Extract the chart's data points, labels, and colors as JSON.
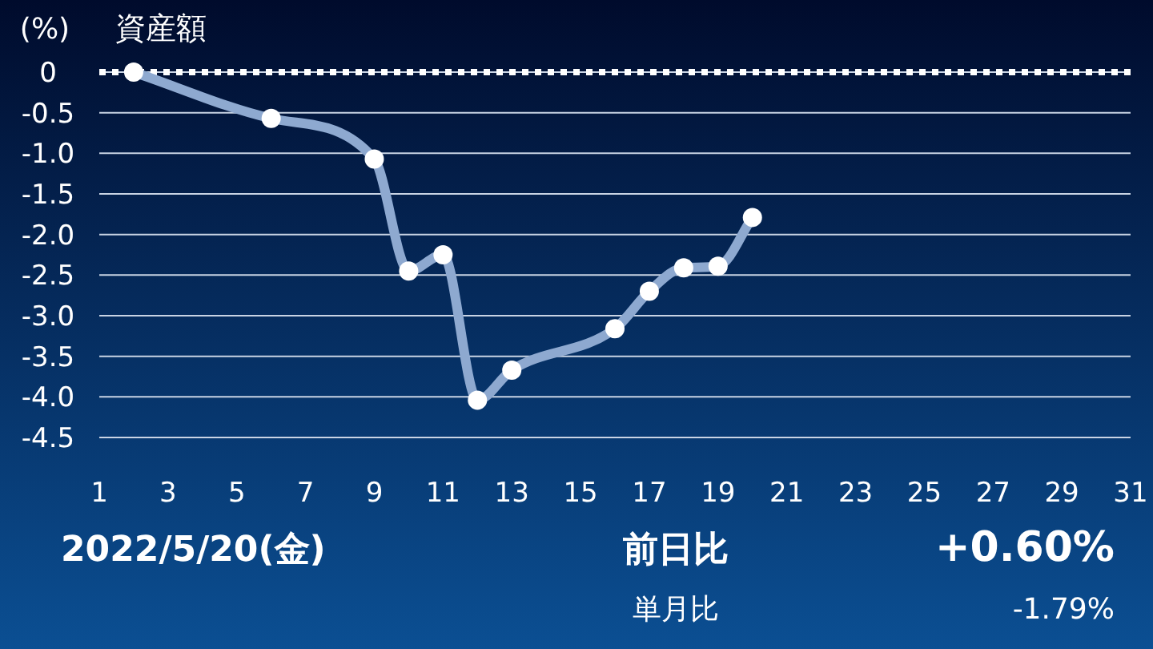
{
  "chart_data": {
    "type": "line",
    "title": "資産額",
    "ylabel": "(%)",
    "x": [
      2,
      6,
      9,
      10,
      11,
      12,
      13,
      16,
      17,
      18,
      19,
      20
    ],
    "series": [
      {
        "color": "#8ea9d0",
        "values": [
          0,
          -0.57,
          -1.07,
          -2.45,
          -2.25,
          -4.04,
          -3.67,
          -3.16,
          -2.7,
          -2.41,
          -2.39,
          -1.79
        ]
      }
    ],
    "xlim": [
      1,
      31
    ],
    "xticks": [
      1,
      3,
      5,
      7,
      9,
      11,
      13,
      15,
      17,
      19,
      21,
      23,
      25,
      27,
      29,
      31
    ],
    "ylim": [
      -4.5,
      0
    ],
    "yticks": [
      0,
      -0.5,
      {
        "value": -1,
        "label": "-1.0"
      },
      -1.5,
      {
        "value": -2,
        "label": "-2.0"
      },
      -2.5,
      {
        "value": -3,
        "label": "-3.0"
      },
      -3.5,
      {
        "value": -4,
        "label": "-4.0"
      },
      -4.5
    ],
    "grid": "y",
    "marker": "circle",
    "line_style": "solid",
    "ref_lines": [
      {
        "axis": "y",
        "value": 0,
        "color": "#ffffff",
        "line_style": "dotted"
      }
    ],
    "annotations": [
      "2022/5/20(金)",
      "前日比",
      "+0.60%",
      "単月比",
      "-1.79%"
    ]
  }
}
